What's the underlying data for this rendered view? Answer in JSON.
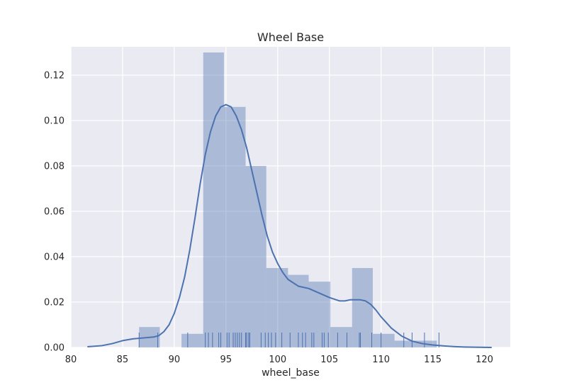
{
  "chart_data": {
    "type": "bar",
    "title": "Wheel Base",
    "xlabel": "wheel_base",
    "ylabel": "",
    "xlim": [
      80.0,
      122.5
    ],
    "ylim": [
      0,
      0.1325
    ],
    "grid": true,
    "xticks": [
      80,
      85,
      90,
      95,
      100,
      105,
      110,
      115,
      120
    ],
    "xtick_labels": [
      "80",
      "85",
      "90",
      "95",
      "100",
      "105",
      "110",
      "115",
      "120"
    ],
    "yticks": [
      0.0,
      0.02,
      0.04,
      0.06,
      0.08,
      0.1,
      0.12
    ],
    "ytick_labels": [
      "0.00",
      "0.02",
      "0.04",
      "0.06",
      "0.08",
      "0.10",
      "0.12"
    ],
    "histogram": {
      "bins": [
        {
          "start": 86.6,
          "end": 88.6,
          "density": 0.009
        },
        {
          "start": 88.6,
          "end": 90.7,
          "density": 0.0
        },
        {
          "start": 90.7,
          "end": 92.8,
          "density": 0.006
        },
        {
          "start": 92.8,
          "end": 94.8,
          "density": 0.13
        },
        {
          "start": 94.8,
          "end": 96.9,
          "density": 0.106
        },
        {
          "start": 96.9,
          "end": 98.9,
          "density": 0.08
        },
        {
          "start": 98.9,
          "end": 101.0,
          "density": 0.035
        },
        {
          "start": 101.0,
          "end": 103.0,
          "density": 0.032
        },
        {
          "start": 103.0,
          "end": 105.1,
          "density": 0.029
        },
        {
          "start": 105.1,
          "end": 107.2,
          "density": 0.009
        },
        {
          "start": 107.2,
          "end": 109.2,
          "density": 0.035
        },
        {
          "start": 109.2,
          "end": 111.3,
          "density": 0.006
        },
        {
          "start": 111.3,
          "end": 113.3,
          "density": 0.003
        },
        {
          "start": 113.3,
          "end": 115.4,
          "density": 0.003
        }
      ]
    },
    "kde": {
      "x": [
        81.6,
        83,
        84,
        85,
        86,
        87,
        88,
        88.5,
        89,
        89.5,
        90,
        90.5,
        91,
        91.5,
        92,
        92.5,
        93,
        93.5,
        94,
        94.5,
        95,
        95.5,
        96,
        96.5,
        97,
        97.5,
        98,
        98.5,
        99,
        99.5,
        100,
        100.5,
        101,
        102,
        103,
        104,
        105,
        106,
        106.5,
        107,
        107.5,
        108,
        108.5,
        109,
        109.5,
        110,
        110.5,
        111,
        112,
        113,
        114,
        115,
        116,
        117,
        118,
        119,
        120.7
      ],
      "y": [
        0.0003,
        0.0008,
        0.0017,
        0.003,
        0.0038,
        0.0042,
        0.0046,
        0.0052,
        0.007,
        0.01,
        0.015,
        0.022,
        0.031,
        0.043,
        0.057,
        0.072,
        0.085,
        0.095,
        0.102,
        0.106,
        0.107,
        0.106,
        0.102,
        0.096,
        0.088,
        0.078,
        0.068,
        0.058,
        0.049,
        0.042,
        0.037,
        0.033,
        0.03,
        0.027,
        0.026,
        0.024,
        0.022,
        0.0205,
        0.0205,
        0.021,
        0.021,
        0.021,
        0.0205,
        0.019,
        0.0165,
        0.0135,
        0.011,
        0.0085,
        0.005,
        0.0028,
        0.0017,
        0.0011,
        0.0007,
        0.0004,
        0.0002,
        0.0001,
        0.0
      ],
      "color": "#4c72b0"
    },
    "rug": [
      86.6,
      88.4,
      91.3,
      93.0,
      93.3,
      93.7,
      94.3,
      94.5,
      95.1,
      95.3,
      95.7,
      95.9,
      96.1,
      96.3,
      96.5,
      96.9,
      97.0,
      97.2,
      97.3,
      98.4,
      98.8,
      99.1,
      99.4,
      99.8,
      100.4,
      101.2,
      102.0,
      102.4,
      102.7,
      103.3,
      103.5,
      104.3,
      104.5,
      104.9,
      105.8,
      106.7,
      107.9,
      108.0,
      109.1,
      110.0,
      112.2,
      113.0,
      114.2,
      115.6
    ],
    "colors": {
      "bar_fill": "#4c72b0",
      "bar_opacity": 0.4,
      "line": "#4c72b0",
      "plot_background": "#eaeaf2",
      "grid": "#ffffff"
    }
  }
}
